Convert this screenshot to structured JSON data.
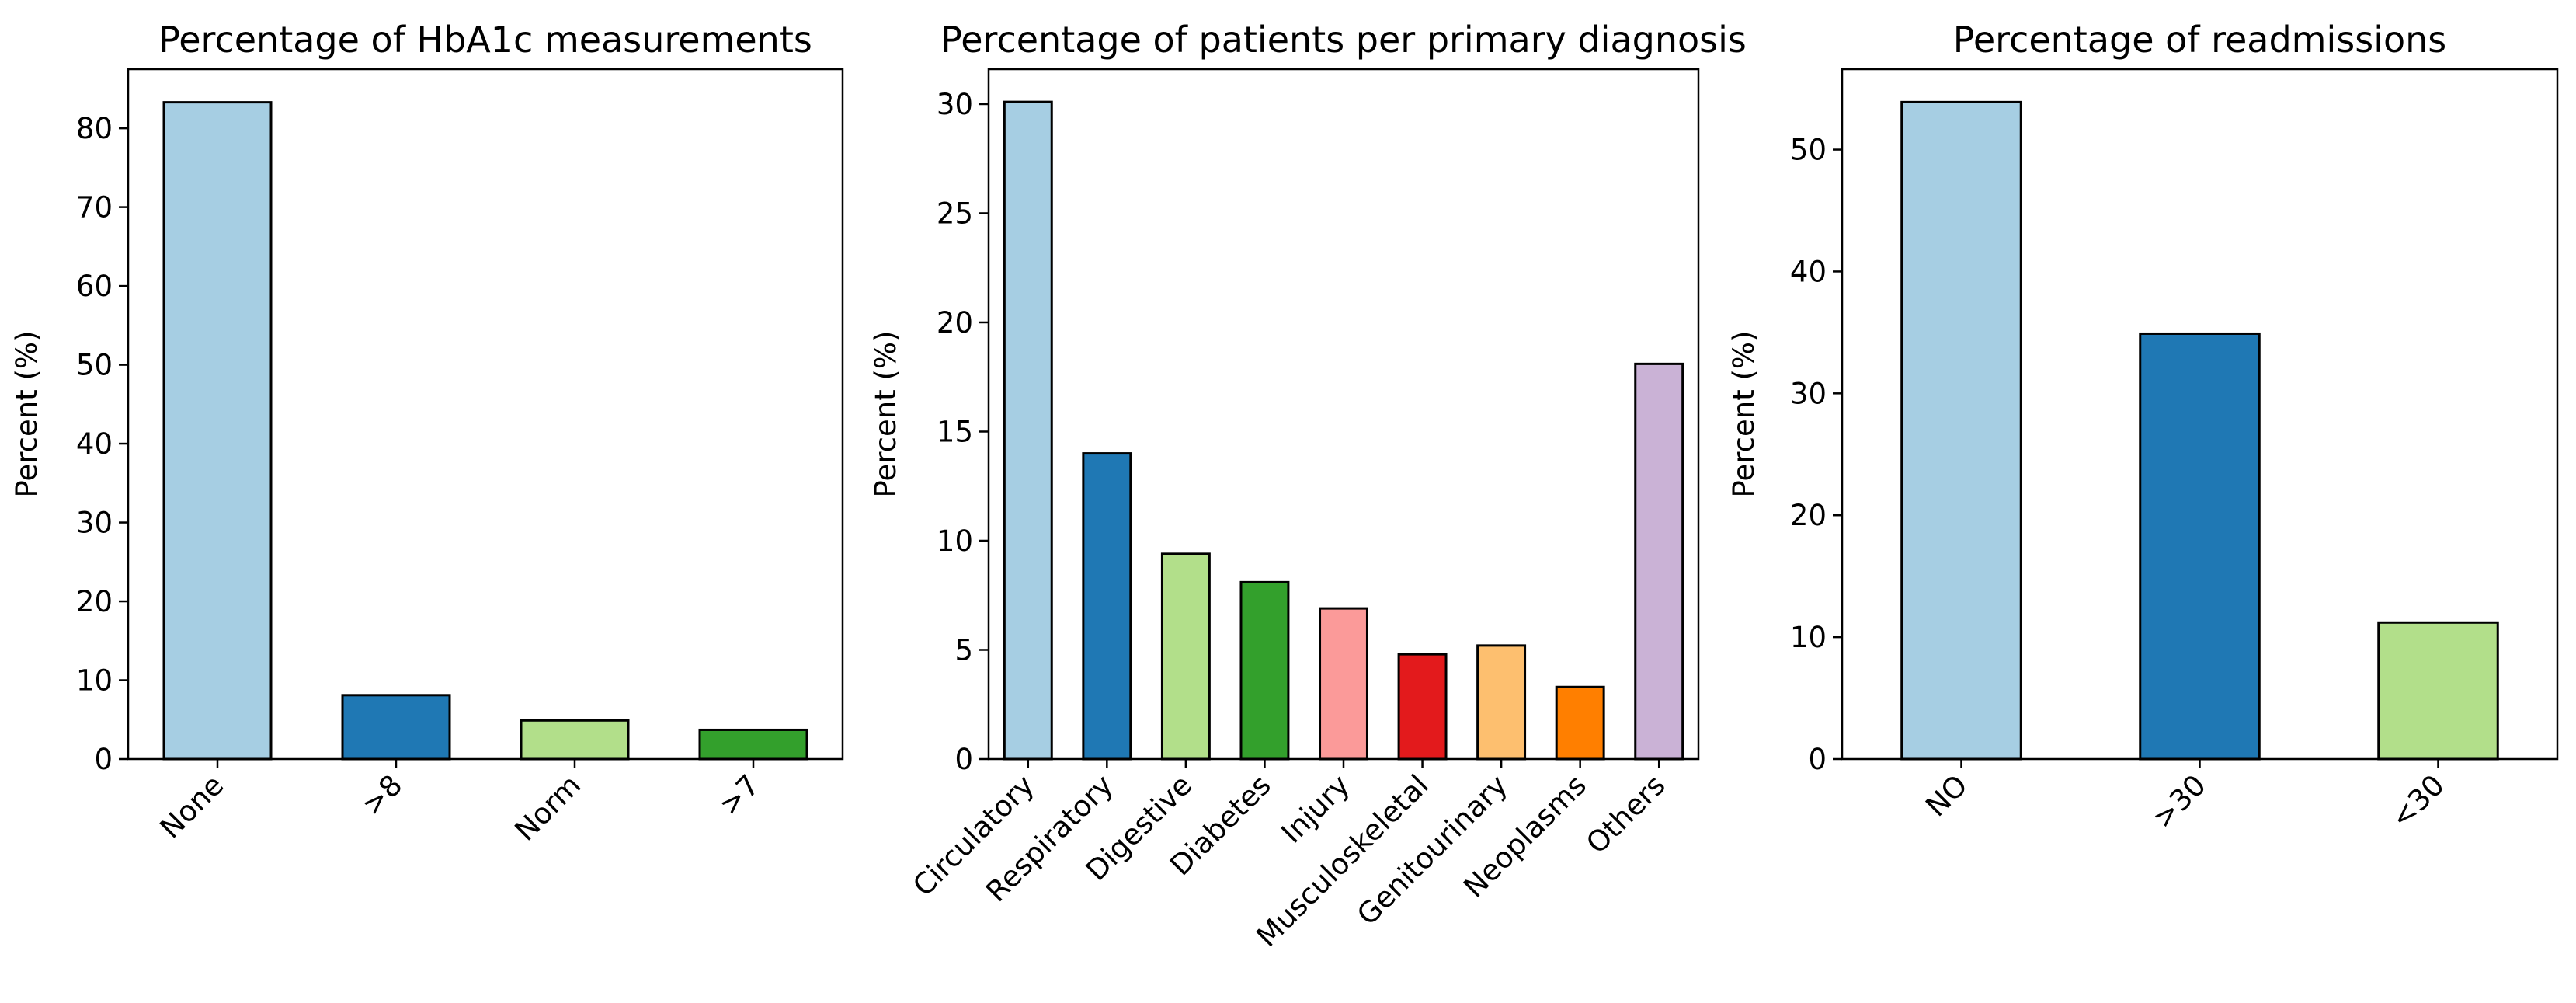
{
  "colors": {
    "palette": [
      "#a6cee3",
      "#1f78b4",
      "#b2df8a",
      "#33a02c",
      "#fb9a99",
      "#e31a1c",
      "#fdbf6f",
      "#ff7f00",
      "#cab2d6"
    ],
    "bar_edge": "#000000",
    "background": "#ffffff"
  },
  "chart_data": [
    {
      "type": "bar",
      "title": "Percentage of HbA1c measurements",
      "xlabel": "",
      "ylabel": "Percent (%)",
      "categories": [
        "None",
        ">8",
        "Norm",
        ">7"
      ],
      "values": [
        83.3,
        8.1,
        4.9,
        3.7
      ],
      "ylim": [
        0,
        87.5
      ],
      "yticks": [
        0,
        10,
        20,
        30,
        40,
        50,
        60,
        70,
        80
      ],
      "grid": false,
      "legend": "none"
    },
    {
      "type": "bar",
      "title": "Percentage of patients per primary diagnosis",
      "xlabel": "",
      "ylabel": "Percent (%)",
      "categories": [
        "Circulatory",
        "Respiratory",
        "Digestive",
        "Diabetes",
        "Injury",
        "Musculoskeletal",
        "Genitourinary",
        "Neoplasms",
        "Others"
      ],
      "values": [
        30.1,
        14.0,
        9.4,
        8.1,
        6.9,
        4.8,
        5.2,
        3.3,
        18.1
      ],
      "ylim": [
        0,
        31.6
      ],
      "yticks": [
        0,
        5,
        10,
        15,
        20,
        25,
        30
      ],
      "grid": false,
      "legend": "none"
    },
    {
      "type": "bar",
      "title": "Percentage of readmissions",
      "xlabel": "",
      "ylabel": "Percent (%)",
      "categories": [
        "NO",
        ">30",
        "<30"
      ],
      "values": [
        53.9,
        34.9,
        11.2
      ],
      "ylim": [
        0,
        56.6
      ],
      "yticks": [
        0,
        10,
        20,
        30,
        40,
        50
      ],
      "grid": false,
      "legend": "none"
    }
  ]
}
